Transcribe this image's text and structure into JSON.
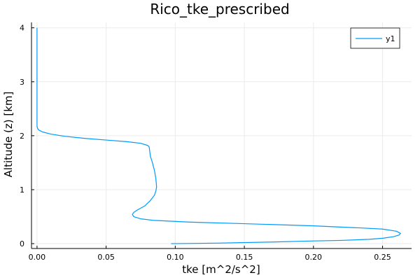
{
  "chart_data": {
    "type": "line",
    "title": "Rico_tke_prescribed",
    "xlabel": "tke [m^2/s^2]",
    "ylabel": "Altitude (z) [km]",
    "xlim": [
      -0.004,
      0.271
    ],
    "ylim": [
      -0.09,
      4.1
    ],
    "xticks": [
      0.0,
      0.05,
      0.1,
      0.15,
      0.2,
      0.25
    ],
    "xtick_labels": [
      "0.00",
      "0.05",
      "0.10",
      "0.15",
      "0.20",
      "0.25"
    ],
    "yticks": [
      0,
      1,
      2,
      3,
      4
    ],
    "ytick_labels": [
      "0",
      "1",
      "2",
      "3",
      "4"
    ],
    "grid": true,
    "legend_position": "top-right",
    "colors": {
      "series": "#009AFA",
      "grid": "#EBEBEB",
      "axis": "#000000"
    },
    "series": [
      {
        "name": "y1",
        "x": [
          0.097,
          0.13,
          0.17,
          0.2,
          0.22,
          0.24,
          0.25,
          0.258,
          0.262,
          0.263,
          0.26,
          0.25,
          0.235,
          0.2,
          0.15,
          0.11,
          0.085,
          0.075,
          0.07,
          0.069,
          0.07,
          0.073,
          0.078,
          0.082,
          0.085,
          0.086,
          0.0865,
          0.086,
          0.085,
          0.0835,
          0.082,
          0.0815,
          0.0812,
          0.081,
          0.08,
          0.075,
          0.065,
          0.05,
          0.035,
          0.02,
          0.01,
          0.004,
          0.001,
          0.0002,
          0.0,
          0.0,
          0.0
        ],
        "y": [
          0.0,
          0.01,
          0.03,
          0.05,
          0.06,
          0.08,
          0.1,
          0.13,
          0.16,
          0.19,
          0.23,
          0.27,
          0.29,
          0.33,
          0.37,
          0.4,
          0.43,
          0.46,
          0.5,
          0.54,
          0.58,
          0.63,
          0.7,
          0.8,
          0.9,
          0.98,
          1.05,
          1.2,
          1.35,
          1.5,
          1.62,
          1.72,
          1.78,
          1.8,
          1.82,
          1.86,
          1.89,
          1.92,
          1.95,
          1.99,
          2.03,
          2.07,
          2.11,
          2.15,
          2.18,
          3.0,
          4.0
        ]
      }
    ]
  }
}
